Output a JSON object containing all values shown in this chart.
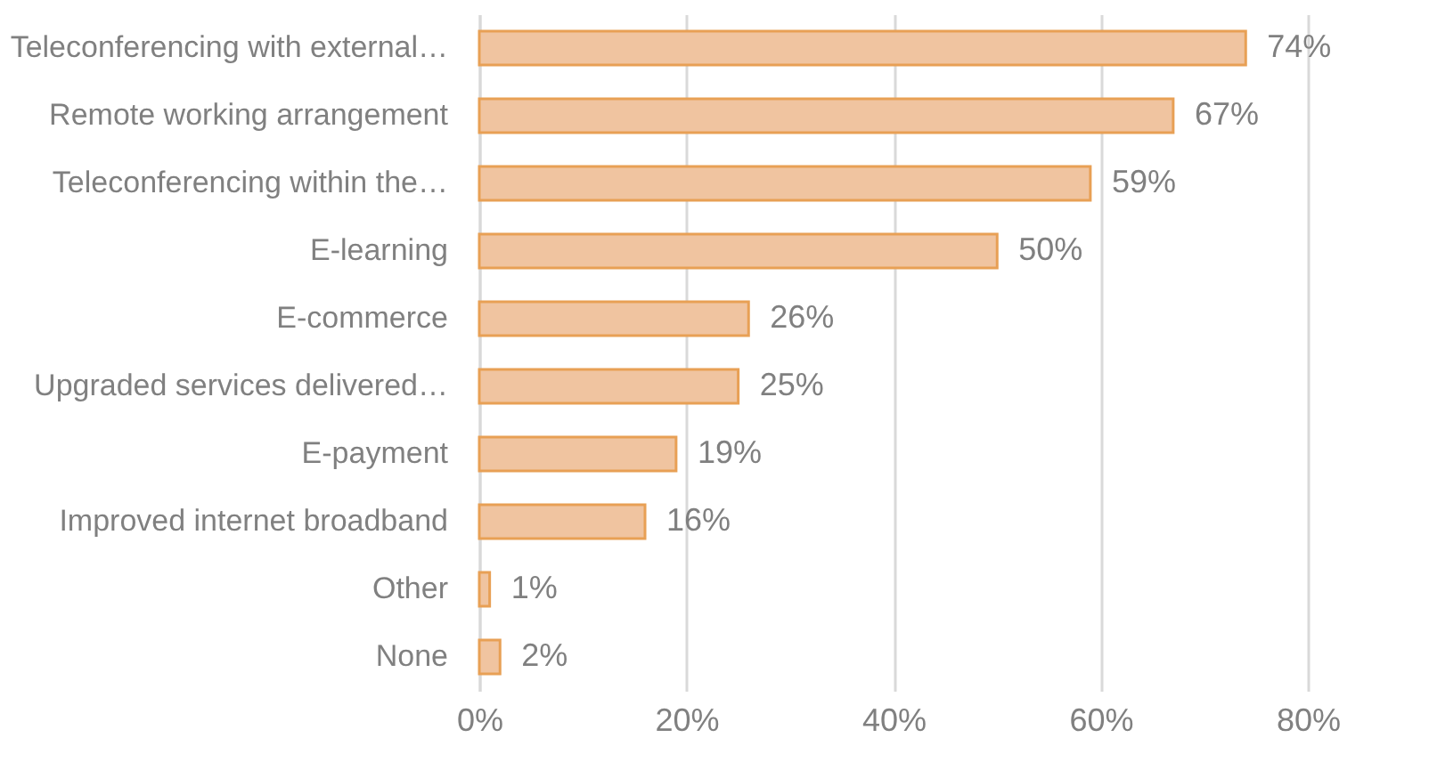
{
  "chart_data": {
    "type": "bar",
    "orientation": "horizontal",
    "categories": [
      "Teleconferencing with external…",
      "Remote working arrangement",
      "Teleconferencing within the…",
      "E-learning",
      "E-commerce",
      "Upgraded services delivered…",
      "E-payment",
      "Improved internet broadband",
      "Other",
      "None"
    ],
    "values": [
      74,
      67,
      59,
      50,
      26,
      25,
      19,
      16,
      1,
      2
    ],
    "value_labels": [
      "74%",
      "67%",
      "59%",
      "50%",
      "26%",
      "25%",
      "19%",
      "16%",
      "1%",
      "2%"
    ],
    "color": "#f0c4a0",
    "xlim": [
      0,
      80
    ],
    "xticks": [
      {
        "value": 0,
        "label": "0%"
      },
      {
        "value": 20,
        "label": "20%"
      },
      {
        "value": 40,
        "label": "40%"
      },
      {
        "value": 60,
        "label": "60%"
      },
      {
        "value": 80,
        "label": "80%"
      }
    ],
    "grid": "x"
  }
}
